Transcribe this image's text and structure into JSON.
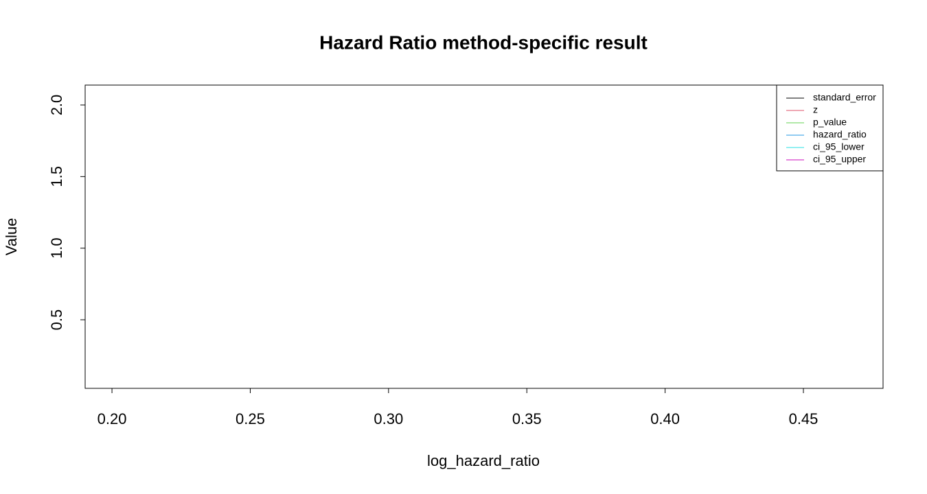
{
  "chart_data": {
    "type": "line",
    "title": "Hazard Ratio method-specific result",
    "x_label": "log_hazard_ratio",
    "y_label": "Value",
    "x": [],
    "series": [
      {
        "name": "standard_error",
        "color": "#000000",
        "values": []
      },
      {
        "name": "z",
        "color": "#DF536B",
        "values": []
      },
      {
        "name": "p_value",
        "color": "#61D04F",
        "values": []
      },
      {
        "name": "hazard_ratio",
        "color": "#2297E6",
        "values": []
      },
      {
        "name": "ci_95_lower",
        "color": "#28E2E5",
        "values": []
      },
      {
        "name": "ci_95_upper",
        "color": "#CD0BBC",
        "values": []
      }
    ],
    "xlim": [
      0.1903,
      0.4788
    ],
    "xticks": [
      {
        "value": 0.2,
        "label": "0.20"
      },
      {
        "value": 0.25,
        "label": "0.25"
      },
      {
        "value": 0.3,
        "label": "0.30"
      },
      {
        "value": 0.35,
        "label": "0.35"
      },
      {
        "value": 0.4,
        "label": "0.40"
      },
      {
        "value": 0.45,
        "label": "0.45"
      }
    ],
    "ylim": [
      0.021,
      2.139
    ],
    "yticks": [
      0.5,
      {
        "value": 1,
        "label": "1.0"
      },
      1.5,
      {
        "value": 2,
        "label": "2.0"
      }
    ],
    "legend": "top-right"
  }
}
